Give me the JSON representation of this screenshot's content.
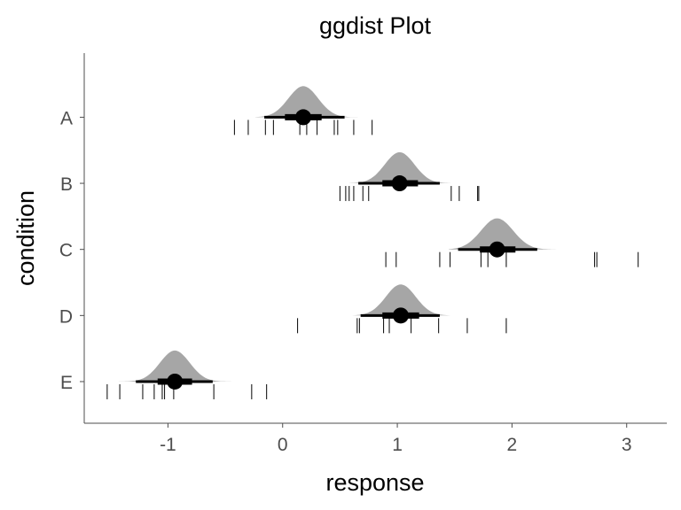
{
  "chart_data": {
    "type": "halfeye",
    "title": "ggdist Plot",
    "xlabel": "response",
    "ylabel": "condition",
    "xlim": [
      -1.73,
      3.35
    ],
    "x_ticks": [
      -1,
      0,
      1,
      2,
      3
    ],
    "x_tick_labels": [
      "-1",
      "0",
      "1",
      "2",
      "3"
    ],
    "categories": [
      "A",
      "B",
      "C",
      "D",
      "E"
    ],
    "grid": false,
    "series": [
      {
        "category": "A",
        "point": 0.18,
        "interval_66": [
          0.02,
          0.34
        ],
        "interval_95": [
          -0.16,
          0.54
        ],
        "density_range": [
          -0.24,
          0.7
        ],
        "density_sd": 0.13,
        "raw": [
          -0.42,
          -0.3,
          -0.15,
          -0.08,
          0.15,
          0.21,
          0.3,
          0.45,
          0.48,
          0.62,
          0.78
        ]
      },
      {
        "category": "B",
        "point": 1.02,
        "interval_66": [
          0.87,
          1.18
        ],
        "interval_95": [
          0.66,
          1.37
        ],
        "density_range": [
          0.58,
          1.47
        ],
        "density_sd": 0.13,
        "raw": [
          0.5,
          0.55,
          0.58,
          0.62,
          0.7,
          0.75,
          1.47,
          1.54,
          1.7,
          1.71
        ]
      },
      {
        "category": "C",
        "point": 1.87,
        "interval_66": [
          1.72,
          2.03
        ],
        "interval_95": [
          1.53,
          2.22
        ],
        "density_range": [
          1.45,
          2.43
        ],
        "density_sd": 0.14,
        "raw": [
          0.9,
          0.99,
          1.37,
          1.46,
          1.73,
          1.79,
          1.95,
          2.72,
          2.74,
          3.1
        ]
      },
      {
        "category": "D",
        "point": 1.03,
        "interval_66": [
          0.87,
          1.19
        ],
        "interval_95": [
          0.68,
          1.37
        ],
        "density_range": [
          0.53,
          1.6
        ],
        "density_sd": 0.13,
        "raw": [
          0.13,
          0.65,
          0.67,
          0.88,
          0.93,
          1.12,
          1.36,
          1.61,
          1.95
        ]
      },
      {
        "category": "E",
        "point": -0.94,
        "interval_66": [
          -1.09,
          -0.79
        ],
        "interval_95": [
          -1.28,
          -0.61
        ],
        "density_range": [
          -1.43,
          -0.35
        ],
        "density_sd": 0.13,
        "raw": [
          -1.53,
          -1.42,
          -1.22,
          -1.12,
          -1.05,
          -1.03,
          -0.95,
          -0.6,
          -0.27,
          -0.14
        ]
      }
    ],
    "colors": {
      "density_fill": "#a6a6a6",
      "interval": "#000000",
      "point": "#000000",
      "raw": "#1a1a1a",
      "axis": "#4d4d4d"
    }
  }
}
